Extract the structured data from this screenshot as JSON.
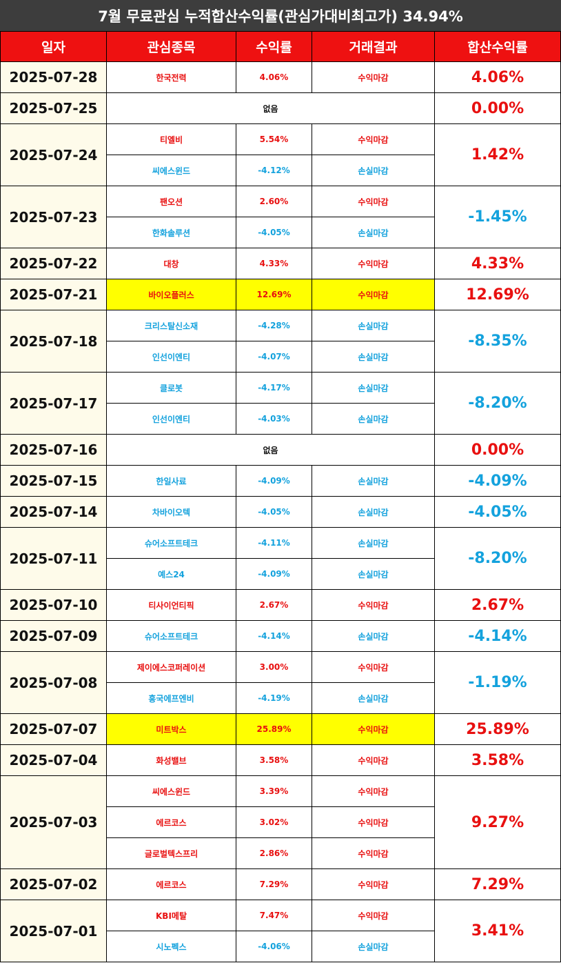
{
  "title": "7월 무료관심 누적합산수익률(관심가대비최고가) 34.94%",
  "headers": [
    "일자",
    "관심종목",
    "수익률",
    "거래결과",
    "합산수익률"
  ],
  "none_label": "없음",
  "colors": {
    "header_bg": "#ee1111",
    "title_bg": "#3d3d3d",
    "profit": "#e81010",
    "loss": "#14a2dd",
    "highlight": "#ffff00",
    "date_bg": "#fefbea"
  },
  "days": [
    {
      "date": "2025-07-28",
      "total": "4.06%",
      "total_sign": "profit",
      "stocks": [
        {
          "name": "한국전력",
          "pct": "4.06%",
          "result": "수익마감",
          "sign": "profit"
        }
      ]
    },
    {
      "date": "2025-07-25",
      "total": "0.00%",
      "total_sign": "neutral",
      "stocks": []
    },
    {
      "date": "2025-07-24",
      "total": "1.42%",
      "total_sign": "profit",
      "stocks": [
        {
          "name": "티엘비",
          "pct": "5.54%",
          "result": "수익마감",
          "sign": "profit"
        },
        {
          "name": "씨에스윈드",
          "pct": "-4.12%",
          "result": "손실마감",
          "sign": "loss"
        }
      ]
    },
    {
      "date": "2025-07-23",
      "total": "-1.45%",
      "total_sign": "loss",
      "stocks": [
        {
          "name": "팬오션",
          "pct": "2.60%",
          "result": "수익마감",
          "sign": "profit"
        },
        {
          "name": "한화솔루션",
          "pct": "-4.05%",
          "result": "손실마감",
          "sign": "loss"
        }
      ]
    },
    {
      "date": "2025-07-22",
      "total": "4.33%",
      "total_sign": "profit",
      "stocks": [
        {
          "name": "대창",
          "pct": "4.33%",
          "result": "수익마감",
          "sign": "profit"
        }
      ]
    },
    {
      "date": "2025-07-21",
      "total": "12.69%",
      "total_sign": "profit",
      "stocks": [
        {
          "name": "바이오플러스",
          "pct": "12.69%",
          "result": "수익마감",
          "sign": "profit",
          "highlight": true
        }
      ]
    },
    {
      "date": "2025-07-18",
      "total": "-8.35%",
      "total_sign": "loss",
      "stocks": [
        {
          "name": "크리스탈신소재",
          "pct": "-4.28%",
          "result": "손실마감",
          "sign": "loss"
        },
        {
          "name": "인선이엔티",
          "pct": "-4.07%",
          "result": "손실마감",
          "sign": "loss"
        }
      ]
    },
    {
      "date": "2025-07-17",
      "total": "-8.20%",
      "total_sign": "loss",
      "stocks": [
        {
          "name": "클로봇",
          "pct": "-4.17%",
          "result": "손실마감",
          "sign": "loss"
        },
        {
          "name": "인선이엔티",
          "pct": "-4.03%",
          "result": "손실마감",
          "sign": "loss"
        }
      ]
    },
    {
      "date": "2025-07-16",
      "total": "0.00%",
      "total_sign": "neutral",
      "stocks": []
    },
    {
      "date": "2025-07-15",
      "total": "-4.09%",
      "total_sign": "loss",
      "stocks": [
        {
          "name": "한일사료",
          "pct": "-4.09%",
          "result": "손실마감",
          "sign": "loss"
        }
      ]
    },
    {
      "date": "2025-07-14",
      "total": "-4.05%",
      "total_sign": "loss",
      "stocks": [
        {
          "name": "차바이오텍",
          "pct": "-4.05%",
          "result": "손실마감",
          "sign": "loss"
        }
      ]
    },
    {
      "date": "2025-07-11",
      "total": "-8.20%",
      "total_sign": "loss",
      "stocks": [
        {
          "name": "슈어소프트테크",
          "pct": "-4.11%",
          "result": "손실마감",
          "sign": "loss"
        },
        {
          "name": "예스24",
          "pct": "-4.09%",
          "result": "손실마감",
          "sign": "loss"
        }
      ]
    },
    {
      "date": "2025-07-10",
      "total": "2.67%",
      "total_sign": "profit",
      "stocks": [
        {
          "name": "티사이언티픽",
          "pct": "2.67%",
          "result": "수익마감",
          "sign": "profit"
        }
      ]
    },
    {
      "date": "2025-07-09",
      "total": "-4.14%",
      "total_sign": "loss",
      "stocks": [
        {
          "name": "슈어소프트테크",
          "pct": "-4.14%",
          "result": "손실마감",
          "sign": "loss"
        }
      ]
    },
    {
      "date": "2025-07-08",
      "total": "-1.19%",
      "total_sign": "loss",
      "stocks": [
        {
          "name": "제이에스코퍼레이션",
          "pct": "3.00%",
          "result": "수익마감",
          "sign": "profit"
        },
        {
          "name": "흥국에프엔비",
          "pct": "-4.19%",
          "result": "손실마감",
          "sign": "loss"
        }
      ]
    },
    {
      "date": "2025-07-07",
      "total": "25.89%",
      "total_sign": "profit",
      "stocks": [
        {
          "name": "미트박스",
          "pct": "25.89%",
          "result": "수익마감",
          "sign": "profit",
          "highlight": true
        }
      ]
    },
    {
      "date": "2025-07-04",
      "total": "3.58%",
      "total_sign": "profit",
      "stocks": [
        {
          "name": "화성밸브",
          "pct": "3.58%",
          "result": "수익마감",
          "sign": "profit"
        }
      ]
    },
    {
      "date": "2025-07-03",
      "total": "9.27%",
      "total_sign": "profit",
      "stocks": [
        {
          "name": "씨에스윈드",
          "pct": "3.39%",
          "result": "수익마감",
          "sign": "profit"
        },
        {
          "name": "에르코스",
          "pct": "3.02%",
          "result": "수익마감",
          "sign": "profit"
        },
        {
          "name": "글로벌텍스프리",
          "pct": "2.86%",
          "result": "수익마감",
          "sign": "profit"
        }
      ]
    },
    {
      "date": "2025-07-02",
      "total": "7.29%",
      "total_sign": "profit",
      "stocks": [
        {
          "name": "에르코스",
          "pct": "7.29%",
          "result": "수익마감",
          "sign": "profit"
        }
      ]
    },
    {
      "date": "2025-07-01",
      "total": "3.41%",
      "total_sign": "profit",
      "stocks": [
        {
          "name": "KBI메탈",
          "pct": "7.47%",
          "result": "수익마감",
          "sign": "profit"
        },
        {
          "name": "시노펙스",
          "pct": "-4.06%",
          "result": "손실마감",
          "sign": "loss"
        }
      ]
    }
  ]
}
